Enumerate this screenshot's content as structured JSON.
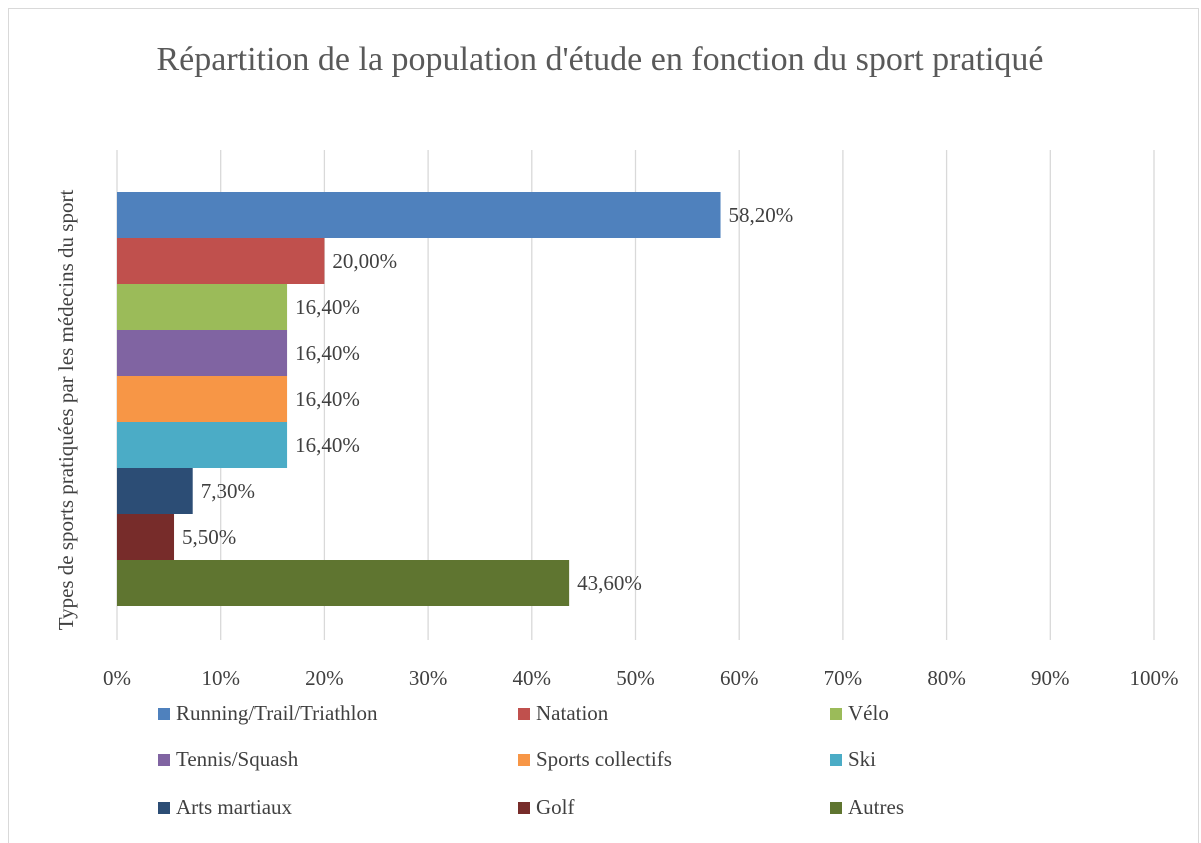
{
  "chart_data": {
    "type": "barh",
    "title": "Répartition de la population d'étude en fonction du sport pratiqué",
    "y_label": "Types de sports pratiquées par les médecins du sport",
    "series": [
      {
        "name": "Running/Trail/Triathlon",
        "color": "#4f81bd",
        "values": [
          58.2
        ],
        "value_labels": [
          "58,20%"
        ]
      },
      {
        "name": "Natation",
        "color": "#c0504d",
        "values": [
          20.0
        ],
        "value_labels": [
          "20,00%"
        ]
      },
      {
        "name": "Vélo",
        "color": "#9bbb59",
        "values": [
          16.4
        ],
        "value_labels": [
          "16,40%"
        ]
      },
      {
        "name": "Tennis/Squash",
        "color": "#8064a2",
        "values": [
          16.4
        ],
        "value_labels": [
          "16,40%"
        ]
      },
      {
        "name": "Sports collectifs",
        "color": "#f79646",
        "values": [
          16.4
        ],
        "value_labels": [
          "16,40%"
        ]
      },
      {
        "name": "Ski",
        "color": "#4bacc6",
        "values": [
          16.4
        ],
        "value_labels": [
          "16,40%"
        ]
      },
      {
        "name": "Arts martiaux",
        "color": "#2c4d75",
        "values": [
          7.3
        ],
        "value_labels": [
          "7,30%"
        ]
      },
      {
        "name": "Golf",
        "color": "#772c2a",
        "values": [
          5.5
        ],
        "value_labels": [
          "5,50%"
        ]
      },
      {
        "name": "Autres",
        "color": "#5f7530",
        "values": [
          43.6
        ],
        "value_labels": [
          "43,60%"
        ]
      }
    ],
    "xlim": [
      0,
      100
    ],
    "xticks": [
      {
        "value": 0,
        "label": "0%"
      },
      {
        "value": 10,
        "label": "10%"
      },
      {
        "value": 20,
        "label": "20%"
      },
      {
        "value": 30,
        "label": "30%"
      },
      {
        "value": 40,
        "label": "40%"
      },
      {
        "value": 50,
        "label": "50%"
      },
      {
        "value": 60,
        "label": "60%"
      },
      {
        "value": 70,
        "label": "70%"
      },
      {
        "value": 80,
        "label": "80%"
      },
      {
        "value": 90,
        "label": "90%"
      },
      {
        "value": 100,
        "label": "100%"
      }
    ],
    "grid": true,
    "legend": "bottom"
  }
}
